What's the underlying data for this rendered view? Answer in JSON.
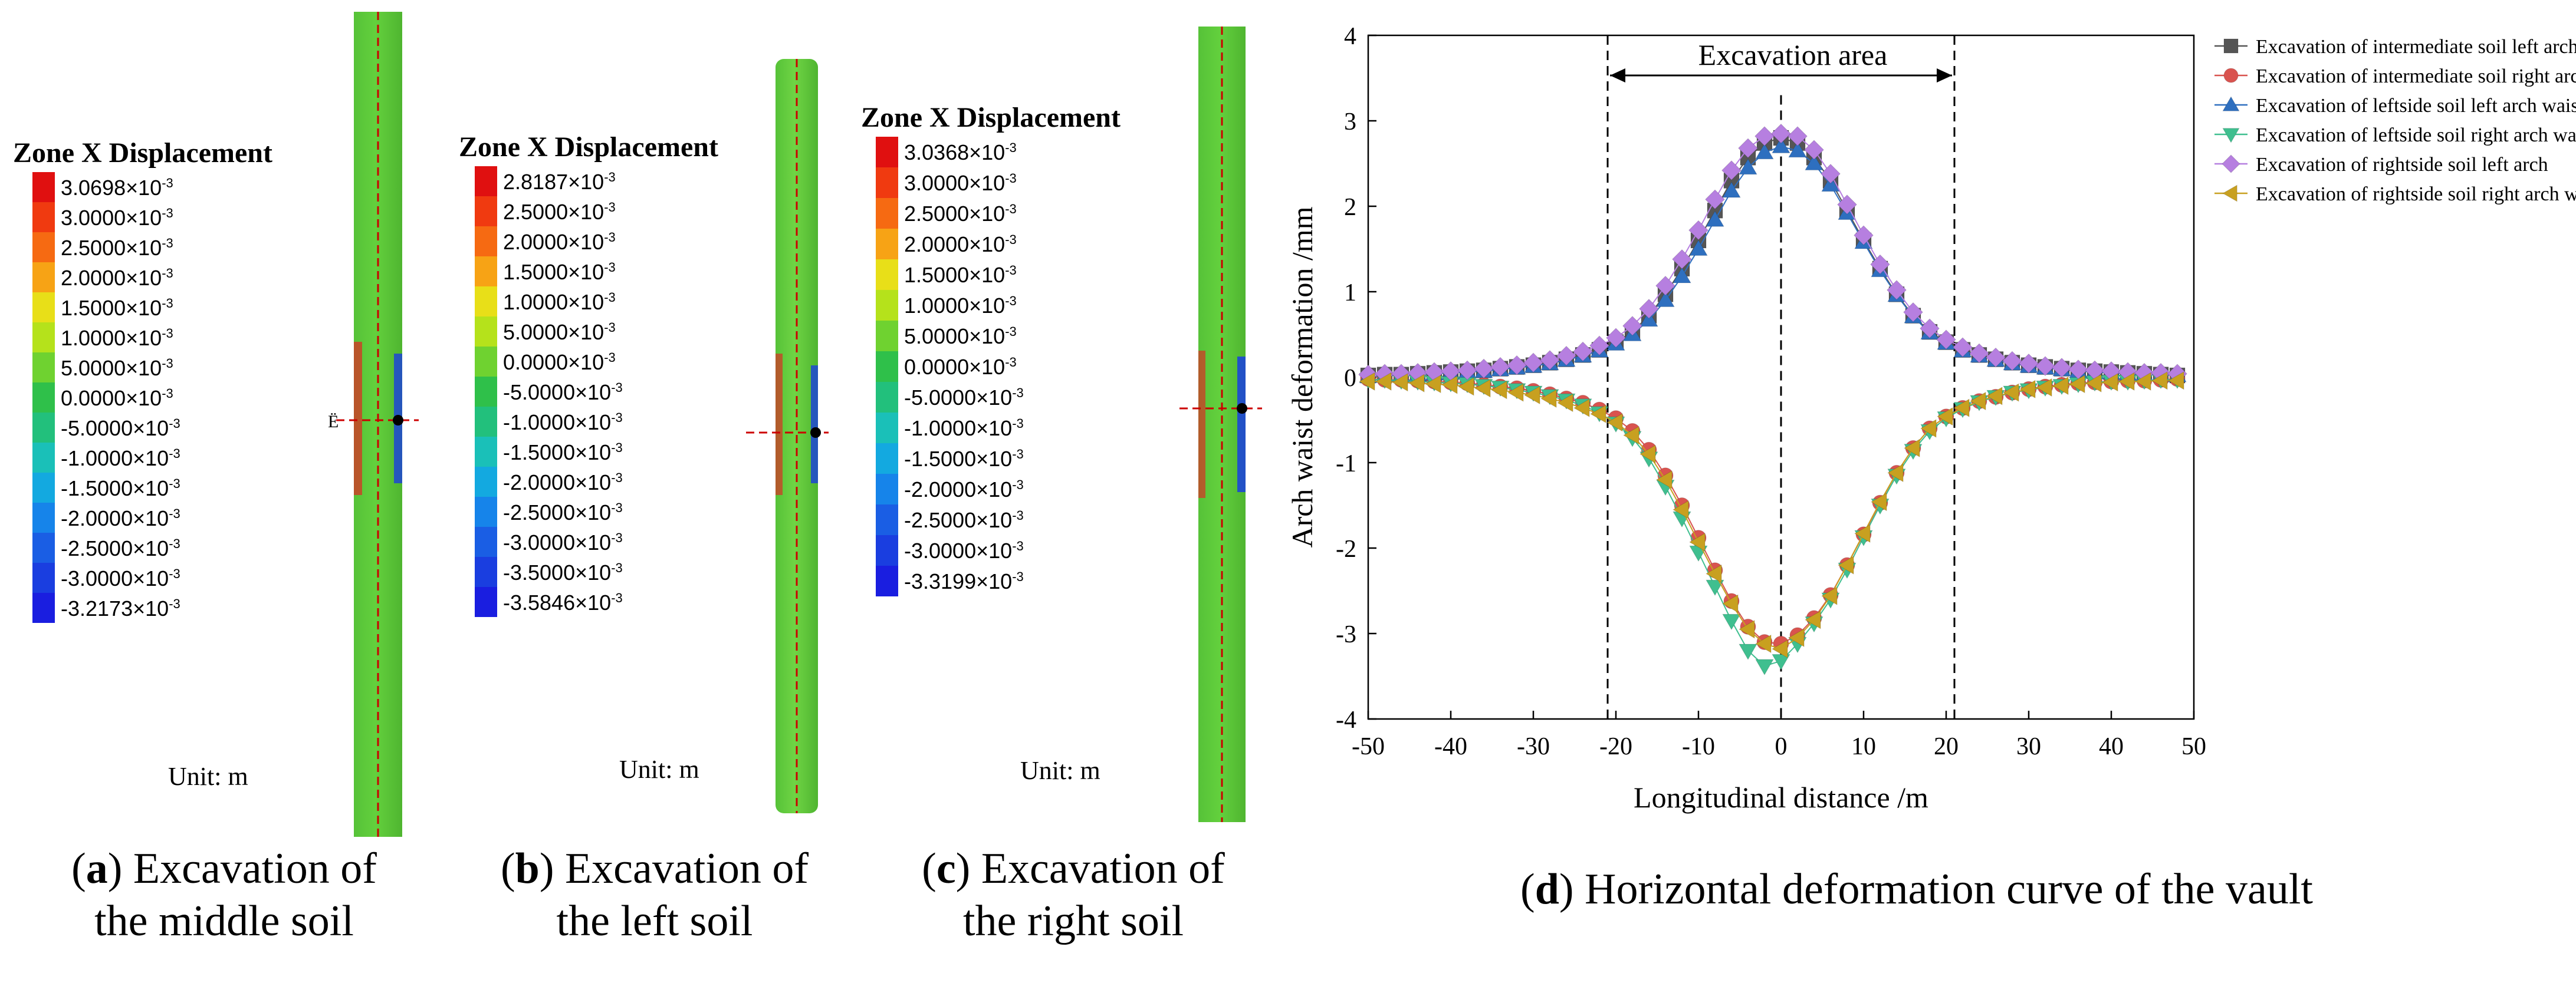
{
  "panels": [
    {
      "id": "a",
      "legend_title": "Zone X Displacement",
      "levels": [
        "3.0698",
        "3.0000",
        "2.5000",
        "2.0000",
        "1.5000",
        "1.0000",
        "5.0000",
        "0.0000",
        "-5.0000",
        "-1.0000",
        "-1.5000",
        "-2.0000",
        "-2.5000",
        "-3.0000",
        "-3.2173"
      ],
      "exponent": "×10-3",
      "unit": "Unit: m",
      "caption_letter": "a",
      "caption_line1": "Excavation of",
      "caption_line2": "the middle soil"
    },
    {
      "id": "b",
      "legend_title": "Zone X Displacement",
      "levels": [
        "2.8187",
        "2.5000",
        "2.0000",
        "1.5000",
        "1.0000",
        "5.0000",
        "0.0000",
        "-5.0000",
        "-1.0000",
        "-1.5000",
        "-2.0000",
        "-2.5000",
        "-3.0000",
        "-3.5000",
        "-3.5846"
      ],
      "exponent": "×10-3",
      "unit": "Unit: m",
      "caption_letter": "b",
      "caption_line1": "Excavation of",
      "caption_line2": "the left soil"
    },
    {
      "id": "c",
      "legend_title": "Zone X Displacement",
      "levels": [
        "3.0368",
        "3.0000",
        "2.5000",
        "2.0000",
        "1.5000",
        "1.0000",
        "5.0000",
        "0.0000",
        "-5.0000",
        "-1.0000",
        "-1.5000",
        "-2.0000",
        "-2.5000",
        "-3.0000",
        "-3.3199"
      ],
      "exponent": "×10-3",
      "unit": "Unit: m",
      "caption_letter": "c",
      "caption_line1": "Excavation of",
      "caption_line2": "the right soil"
    }
  ],
  "legend_colors": [
    "#e01010",
    "#f03a10",
    "#f66a12",
    "#f7a315",
    "#e8df18",
    "#b5e21b",
    "#6fd230",
    "#2fc04a",
    "#22c07c",
    "#1ac0b8",
    "#13a9e0",
    "#1684ea",
    "#1a5ee4",
    "#1a3ee0",
    "#1a1ee0"
  ],
  "chart_caption_letter": "d",
  "chart_caption": "Horizontal deformation curve of the vault",
  "chart_data": {
    "type": "scatter",
    "xlabel": "Longitudinal distance /m",
    "ylabel": "Arch waist deformation /mm",
    "xlim": [
      -50,
      50
    ],
    "ylim": [
      -4,
      4
    ],
    "xticks": [
      -50,
      -40,
      -30,
      -20,
      -10,
      0,
      10,
      20,
      30,
      40,
      50
    ],
    "yticks": [
      4,
      3,
      2,
      1,
      0,
      -1,
      -2,
      -3,
      -4
    ],
    "annotation": "Excavation area",
    "excavation_bounds": [
      -21,
      21
    ],
    "center_line_x": 0,
    "legend_position": "top-right",
    "x": [
      -50,
      -48,
      -46,
      -44,
      -42,
      -40,
      -38,
      -36,
      -34,
      -32,
      -30,
      -28,
      -26,
      -24,
      -22,
      -20,
      -18,
      -16,
      -14,
      -12,
      -10,
      -8,
      -6,
      -4,
      -2,
      0,
      2,
      4,
      6,
      8,
      10,
      12,
      14,
      16,
      18,
      20,
      22,
      24,
      26,
      28,
      30,
      32,
      34,
      36,
      38,
      40,
      42,
      44,
      46,
      48
    ],
    "series": [
      {
        "name": "Excavation of intermediate soil left arch waist",
        "marker": "square",
        "color": "#555555",
        "values": [
          0.02,
          0.03,
          0.03,
          0.04,
          0.05,
          0.06,
          0.07,
          0.08,
          0.1,
          0.12,
          0.14,
          0.17,
          0.21,
          0.26,
          0.32,
          0.41,
          0.53,
          0.72,
          0.97,
          1.27,
          1.6,
          1.95,
          2.3,
          2.57,
          2.74,
          2.8,
          2.74,
          2.57,
          2.3,
          1.95,
          1.6,
          1.27,
          0.97,
          0.72,
          0.53,
          0.41,
          0.32,
          0.26,
          0.21,
          0.17,
          0.14,
          0.12,
          0.1,
          0.08,
          0.07,
          0.06,
          0.05,
          0.04,
          0.03,
          0.02
        ]
      },
      {
        "name": "Excavation of intermediate soil right arch waist",
        "marker": "circle",
        "color": "#d9534f",
        "values": [
          -0.02,
          -0.03,
          -0.03,
          -0.04,
          -0.05,
          -0.06,
          -0.07,
          -0.09,
          -0.11,
          -0.13,
          -0.16,
          -0.2,
          -0.25,
          -0.3,
          -0.38,
          -0.48,
          -0.63,
          -0.85,
          -1.15,
          -1.5,
          -1.88,
          -2.26,
          -2.62,
          -2.92,
          -3.1,
          -3.12,
          -3.02,
          -2.82,
          -2.55,
          -2.2,
          -1.84,
          -1.47,
          -1.12,
          -0.83,
          -0.6,
          -0.46,
          -0.36,
          -0.28,
          -0.23,
          -0.18,
          -0.14,
          -0.11,
          -0.09,
          -0.07,
          -0.06,
          -0.05,
          -0.04,
          -0.04,
          -0.03,
          -0.02
        ]
      },
      {
        "name": "Excavation of leftside soil left arch waist",
        "marker": "triangle-up",
        "color": "#2e6fbf",
        "values": [
          0.01,
          0.02,
          0.02,
          0.03,
          0.04,
          0.05,
          0.06,
          0.07,
          0.09,
          0.11,
          0.13,
          0.16,
          0.2,
          0.25,
          0.31,
          0.39,
          0.5,
          0.67,
          0.9,
          1.18,
          1.5,
          1.84,
          2.18,
          2.45,
          2.63,
          2.7,
          2.65,
          2.5,
          2.25,
          1.92,
          1.58,
          1.25,
          0.96,
          0.71,
          0.52,
          0.4,
          0.31,
          0.25,
          0.2,
          0.16,
          0.13,
          0.11,
          0.09,
          0.07,
          0.06,
          0.05,
          0.04,
          0.03,
          0.03,
          0.02
        ]
      },
      {
        "name": "Excavation of leftside soil right arch waist",
        "marker": "triangle-down",
        "color": "#3fbf8f",
        "values": [
          -0.03,
          -0.03,
          -0.04,
          -0.05,
          -0.06,
          -0.07,
          -0.08,
          -0.1,
          -0.12,
          -0.15,
          -0.18,
          -0.22,
          -0.27,
          -0.33,
          -0.42,
          -0.54,
          -0.71,
          -0.95,
          -1.28,
          -1.65,
          -2.05,
          -2.45,
          -2.85,
          -3.2,
          -3.38,
          -3.32,
          -3.12,
          -2.88,
          -2.6,
          -2.25,
          -1.87,
          -1.5,
          -1.15,
          -0.86,
          -0.63,
          -0.48,
          -0.37,
          -0.29,
          -0.23,
          -0.18,
          -0.15,
          -0.12,
          -0.1,
          -0.08,
          -0.06,
          -0.05,
          -0.05,
          -0.04,
          -0.03,
          -0.03
        ]
      },
      {
        "name": "Excavation of rightside soil left arch",
        "marker": "diamond",
        "color": "#b67fe0",
        "values": [
          0.03,
          0.04,
          0.04,
          0.05,
          0.06,
          0.07,
          0.08,
          0.1,
          0.12,
          0.14,
          0.17,
          0.2,
          0.25,
          0.3,
          0.37,
          0.46,
          0.6,
          0.8,
          1.07,
          1.38,
          1.72,
          2.08,
          2.42,
          2.68,
          2.82,
          2.85,
          2.82,
          2.66,
          2.38,
          2.02,
          1.66,
          1.32,
          1.02,
          0.76,
          0.57,
          0.44,
          0.35,
          0.28,
          0.23,
          0.19,
          0.16,
          0.13,
          0.11,
          0.09,
          0.08,
          0.07,
          0.06,
          0.05,
          0.05,
          0.04
        ]
      },
      {
        "name": "Excavation of rightside soil right arch waist",
        "marker": "triangle-left",
        "color": "#c8a020",
        "values": [
          -0.05,
          -0.05,
          -0.06,
          -0.07,
          -0.08,
          -0.09,
          -0.11,
          -0.13,
          -0.15,
          -0.18,
          -0.21,
          -0.25,
          -0.3,
          -0.36,
          -0.43,
          -0.53,
          -0.68,
          -0.9,
          -1.2,
          -1.55,
          -1.93,
          -2.3,
          -2.65,
          -2.95,
          -3.12,
          -3.18,
          -3.05,
          -2.84,
          -2.56,
          -2.2,
          -1.83,
          -1.46,
          -1.12,
          -0.83,
          -0.6,
          -0.46,
          -0.36,
          -0.28,
          -0.22,
          -0.18,
          -0.14,
          -0.12,
          -0.1,
          -0.08,
          -0.07,
          -0.06,
          -0.05,
          -0.05,
          -0.04,
          -0.04
        ]
      }
    ]
  }
}
